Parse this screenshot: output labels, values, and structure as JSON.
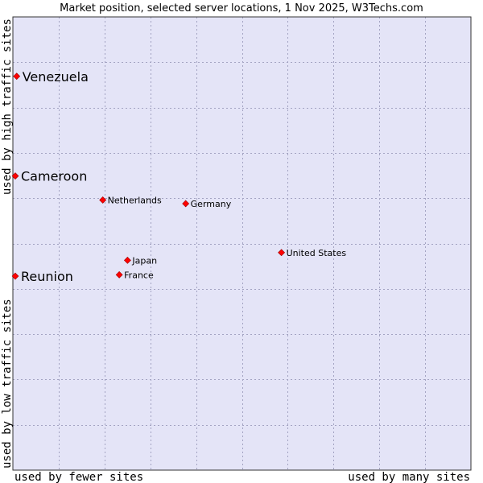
{
  "chart_data": {
    "type": "scatter",
    "title": "Market position, selected server locations, 1 Nov 2025, W3Techs.com",
    "xlabel_left": "used by fewer sites",
    "xlabel_right": "used by many sites",
    "ylabel_bottom": "used by low traffic sites",
    "ylabel_top": "used by high traffic sites",
    "xlim": [
      0,
      100
    ],
    "ylim": [
      0,
      100
    ],
    "grid": true,
    "colors": {
      "plot_background": "#e4e4f7",
      "border": "#333333",
      "marker": "#ff0000",
      "marker_edge": "#990000"
    },
    "points": [
      {
        "label": "Venezuela",
        "x": 0.3,
        "y": 86.9,
        "emphasis": true
      },
      {
        "label": "Cameroon",
        "x": 0.0,
        "y": 64.9,
        "emphasis": true
      },
      {
        "label": "Reunion",
        "x": 0.0,
        "y": 42.8,
        "emphasis": true
      },
      {
        "label": "Netherlands",
        "x": 19.1,
        "y": 59.6,
        "emphasis": false
      },
      {
        "label": "Germany",
        "x": 37.2,
        "y": 58.8,
        "emphasis": false
      },
      {
        "label": "United States",
        "x": 58.1,
        "y": 48.0,
        "emphasis": false
      },
      {
        "label": "Japan",
        "x": 24.5,
        "y": 46.3,
        "emphasis": false
      },
      {
        "label": "France",
        "x": 22.7,
        "y": 43.1,
        "emphasis": false
      }
    ]
  }
}
